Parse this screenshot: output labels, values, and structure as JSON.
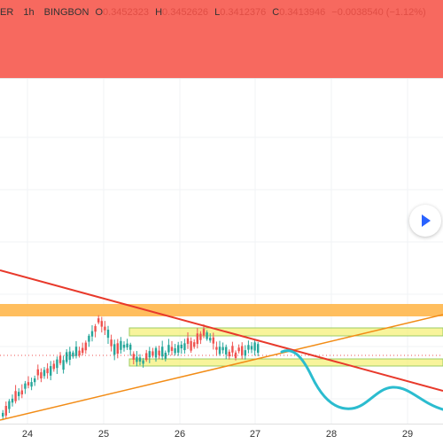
{
  "header": {
    "symbol_partial": "ER",
    "interval": "1h",
    "exchange": "BINGBON",
    "open_label": "O",
    "open_value": "0.3452323",
    "high_label": "H",
    "high_value": "0.3452626",
    "low_label": "L",
    "low_value": "0.3412376",
    "close_label": "C",
    "close_value": "0.3413946",
    "change": "−0.0038540 (−1.12%)"
  },
  "colors": {
    "header_bg": "#f7695f",
    "bull": "#26a69a",
    "bear": "#ef5350",
    "resistance_line": "#e8392b",
    "support_line": "#f28c16",
    "zone_orange": "#ffb74d",
    "zone_yellow": "#f5f07a",
    "projection": "#2bbccf"
  },
  "xaxis": {
    "ticks": [
      "24",
      "25",
      "26",
      "27",
      "28",
      "29"
    ]
  },
  "play_button": {
    "icon": "play-icon"
  }
}
